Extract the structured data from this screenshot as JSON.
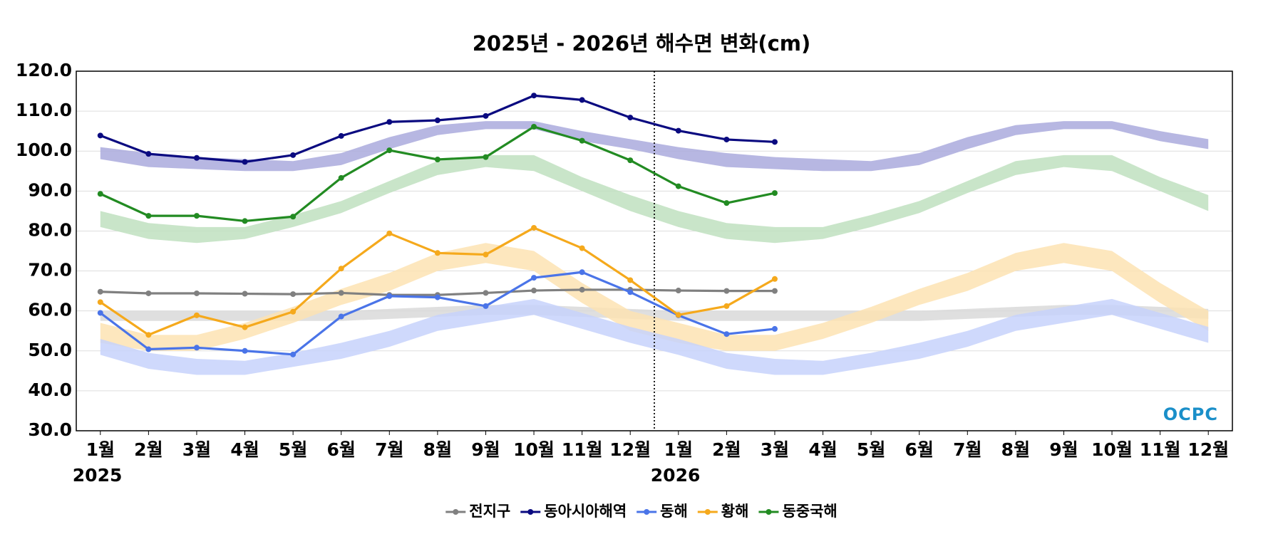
{
  "chart_data": {
    "type": "line",
    "title": "2025년 - 2026년 해수면 변화(cm)",
    "categories": [
      "1월",
      "2월",
      "3월",
      "4월",
      "5월",
      "6월",
      "7월",
      "8월",
      "9월",
      "10월",
      "11월",
      "12월",
      "1월",
      "2월",
      "3월",
      "4월",
      "5월",
      "6월",
      "7월",
      "8월",
      "9월",
      "10월",
      "11월",
      "12월"
    ],
    "year_labels": [
      "2025",
      "2026"
    ],
    "logo": "OCPC",
    "ylim": [
      30,
      120
    ],
    "yticks": [
      {
        "value": 30,
        "label": "30.0"
      },
      {
        "value": 40,
        "label": "40.0"
      },
      {
        "value": 50,
        "label": "50.0"
      },
      {
        "value": 60,
        "label": "60.0"
      },
      {
        "value": 70,
        "label": "70.0"
      },
      {
        "value": 80,
        "label": "80.0"
      },
      {
        "value": 90,
        "label": "90.0"
      },
      {
        "value": 100,
        "label": "100.0"
      },
      {
        "value": 110,
        "label": "110.0"
      },
      {
        "value": 120,
        "label": "120.0"
      }
    ],
    "grid": true,
    "legend": "bottom",
    "series": [
      {
        "name": "전지구",
        "color": "#808080",
        "values": [
          64.8,
          64.4,
          64.4,
          64.3,
          64.2,
          64.5,
          64.0,
          64.0,
          64.5,
          65.1,
          65.3,
          65.3,
          65.1,
          65.0,
          65.0,
          null,
          null,
          null,
          null,
          null,
          null,
          null,
          null,
          null
        ]
      },
      {
        "name": "동아시아해역",
        "color": "#0a0a80",
        "values": [
          103.9,
          99.3,
          98.3,
          97.3,
          99.0,
          103.8,
          107.3,
          107.7,
          108.8,
          113.9,
          112.8,
          108.4,
          105.1,
          102.9,
          102.3,
          null,
          null,
          null,
          null,
          null,
          null,
          null,
          null,
          null
        ]
      },
      {
        "name": "동해",
        "color": "#4a74e8",
        "values": [
          59.5,
          50.4,
          50.8,
          50.0,
          49.1,
          58.6,
          63.7,
          63.4,
          61.2,
          68.3,
          69.7,
          64.7,
          58.9,
          54.2,
          55.5,
          null,
          null,
          null,
          null,
          null,
          null,
          null,
          null,
          null
        ]
      },
      {
        "name": "황해",
        "color": "#f5a91c",
        "values": [
          62.2,
          54.0,
          58.9,
          55.9,
          59.8,
          70.6,
          79.4,
          74.5,
          74.1,
          80.8,
          75.7,
          67.7,
          59.0,
          61.2,
          68.0,
          null,
          null,
          null,
          null,
          null,
          null,
          null,
          null,
          null
        ]
      },
      {
        "name": "동중국해",
        "color": "#228b22",
        "values": [
          89.3,
          83.8,
          83.8,
          82.5,
          83.6,
          93.3,
          100.2,
          97.9,
          98.5,
          106.1,
          102.6,
          97.7,
          91.2,
          87.0,
          89.5,
          null,
          null,
          null,
          null,
          null,
          null,
          null,
          null,
          null
        ]
      }
    ],
    "bands": [
      {
        "color": "#d9d9d9",
        "lower": [
          57.5,
          57.5,
          57.5,
          57.5,
          57.5,
          57.5,
          58,
          58.5,
          59,
          59,
          58.5,
          58,
          57.5,
          57.5,
          57.5,
          57.5,
          57.5,
          57.5,
          58,
          58.5,
          59,
          59,
          58.5,
          58
        ],
        "upper": [
          60,
          60,
          60,
          60,
          60,
          60,
          60.5,
          61,
          61.5,
          61.5,
          61,
          60.5,
          60,
          60,
          60,
          60,
          60,
          60,
          60.5,
          61,
          61.5,
          61.5,
          61,
          60.5
        ]
      },
      {
        "color": "#aaaadd",
        "lower": [
          98,
          96,
          95.5,
          95,
          95,
          96.5,
          100.5,
          104,
          105.5,
          105.5,
          102.5,
          100.5,
          98,
          96,
          95.5,
          95,
          95,
          96.5,
          100.5,
          104,
          105.5,
          105.5,
          102.5,
          100.5
        ],
        "upper": [
          101,
          99.5,
          98.5,
          98,
          97.5,
          99.5,
          103.5,
          106.5,
          107.5,
          107.5,
          105,
          103,
          101,
          99.5,
          98.5,
          98,
          97.5,
          99.5,
          103.5,
          106.5,
          107.5,
          107.5,
          105,
          103
        ]
      },
      {
        "color": "#bfe0bf",
        "lower": [
          81,
          78,
          77,
          78,
          81,
          84.5,
          89.5,
          94,
          96,
          95,
          90,
          85,
          81,
          78,
          77,
          78,
          81,
          84.5,
          89.5,
          94,
          96,
          95,
          90,
          85
        ],
        "upper": [
          85,
          82,
          81,
          81,
          84,
          87.5,
          92.5,
          97.5,
          99,
          99,
          93.5,
          89,
          85,
          82,
          81,
          81,
          84,
          87.5,
          92.5,
          97.5,
          99,
          99,
          93.5,
          89
        ]
      },
      {
        "color": "#fde3b3",
        "lower": [
          52,
          50,
          50,
          53,
          57,
          61.5,
          65,
          70,
          72,
          70,
          62,
          55,
          52,
          50,
          50,
          53,
          57,
          61.5,
          65,
          70,
          72,
          70,
          62,
          55
        ],
        "upper": [
          57,
          54,
          54,
          57,
          61,
          65.5,
          69.5,
          74.5,
          77,
          75,
          67,
          60,
          57,
          54,
          54,
          57,
          61,
          65.5,
          69.5,
          74.5,
          77,
          75,
          67,
          60
        ]
      },
      {
        "color": "#c7d2fb",
        "lower": [
          49,
          45.5,
          44,
          44,
          46,
          48,
          51,
          55,
          57,
          59,
          55.5,
          52,
          49,
          45.5,
          44,
          44,
          46,
          48,
          51,
          55,
          57,
          59,
          55.5,
          52
        ],
        "upper": [
          53,
          49.5,
          48,
          47.5,
          49.5,
          52,
          55,
          59,
          61,
          63,
          59.5,
          56,
          53,
          49.5,
          48,
          47.5,
          49.5,
          52,
          55,
          59,
          61,
          63,
          59.5,
          56
        ]
      }
    ]
  }
}
